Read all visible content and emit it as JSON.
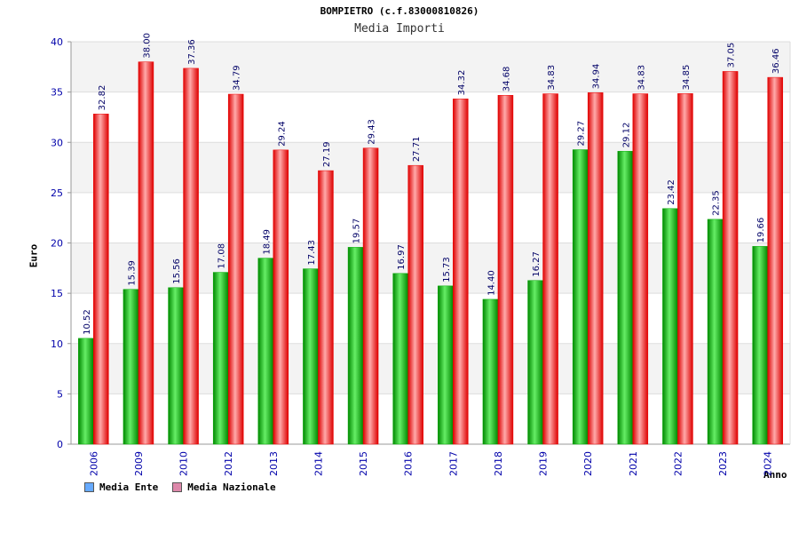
{
  "chart_data": {
    "type": "bar",
    "title": "BOMPIETRO (c.f.83000810826)",
    "subtitle": "Media Importi",
    "xlabel": "Anno",
    "ylabel": "Euro",
    "ylim": [
      0,
      40
    ],
    "yticks": [
      0,
      5,
      10,
      15,
      20,
      25,
      30,
      35,
      40
    ],
    "grid": true,
    "legend_position": "bottom-left",
    "categories": [
      "2006",
      "2009",
      "2010",
      "2012",
      "2013",
      "2014",
      "2015",
      "2016",
      "2017",
      "2018",
      "2019",
      "2020",
      "2021",
      "2022",
      "2023",
      "2024"
    ],
    "series": [
      {
        "name": "Media Ente",
        "color": "#00aa00",
        "legend_color": "#66aaff",
        "values": [
          10.52,
          15.39,
          15.56,
          17.08,
          18.49,
          17.43,
          19.57,
          16.97,
          15.73,
          14.4,
          16.27,
          29.27,
          29.12,
          23.42,
          22.35,
          19.66
        ],
        "labels": [
          "10.52",
          "15.39",
          "15.56",
          "17.08",
          "18.49",
          "17.43",
          "19.57",
          "16.97",
          "15.73",
          "14.40",
          "16.27",
          "29.27",
          "29.12",
          "23.42",
          "22.35",
          "19.66"
        ]
      },
      {
        "name": "Media Nazionale",
        "color": "#ee0000",
        "legend_color": "#dd88aa",
        "values": [
          32.82,
          38.0,
          37.36,
          34.79,
          29.24,
          27.19,
          29.43,
          27.71,
          34.32,
          34.68,
          34.83,
          34.94,
          34.83,
          34.85,
          37.05,
          36.46
        ],
        "labels": [
          "32.82",
          "38.00",
          "37.36",
          "34.79",
          "29.24",
          "27.19",
          "29.43",
          "27.71",
          "34.32",
          "34.68",
          "34.83",
          "34.94",
          "34.83",
          "34.85",
          "37.05",
          "36.46"
        ]
      }
    ]
  }
}
